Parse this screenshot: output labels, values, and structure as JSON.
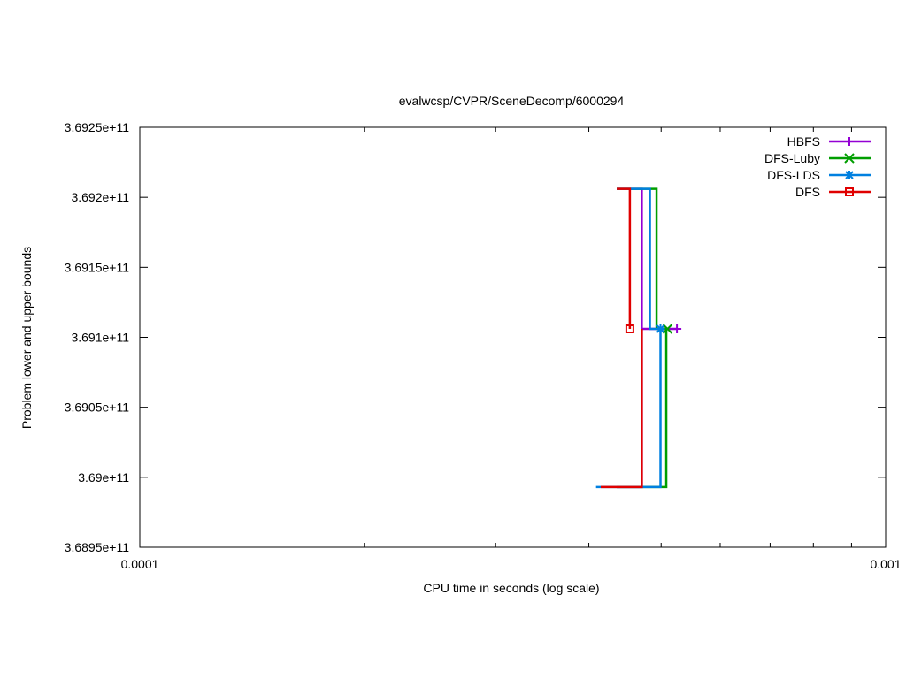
{
  "chart_data": {
    "type": "line",
    "title": "evalwcsp/CVPR/SceneDecomp/6000294",
    "xlabel": "CPU time in seconds (log scale)",
    "ylabel": "Problem lower and upper bounds",
    "xscale": "log",
    "xlim": [
      0.0001,
      0.001
    ],
    "ylim": [
      368950000000,
      369250000000
    ],
    "x_ticks": [
      {
        "value": 0.0001,
        "label": "0.0001"
      },
      {
        "value": 0.001,
        "label": "0.001"
      }
    ],
    "y_ticks": [
      {
        "value": 368950000000,
        "label": "3.6895e+11"
      },
      {
        "value": 369000000000,
        "label": "3.69e+11"
      },
      {
        "value": 369050000000,
        "label": "3.6905e+11"
      },
      {
        "value": 369100000000,
        "label": "3.691e+11"
      },
      {
        "value": 369150000000,
        "label": "3.6915e+11"
      },
      {
        "value": 369200000000,
        "label": "3.692e+11"
      },
      {
        "value": 369250000000,
        "label": "3.6925e+11"
      }
    ],
    "grid": false,
    "legend": "top-right",
    "series": [
      {
        "name": "HBFS",
        "color": "#9400d3",
        "marker": "plus",
        "upper": [
          [
            0.000436,
            369206000000
          ],
          [
            0.000471,
            369206000000
          ]
        ],
        "lower": [
          [
            0.000436,
            368993000000
          ],
          [
            0.000471,
            368993000000
          ]
        ],
        "final": [
          0.000525,
          369106000000
        ]
      },
      {
        "name": "DFS-Luby",
        "color": "#009e00",
        "marker": "x",
        "upper": [
          [
            0.000436,
            369206000000
          ],
          [
            0.000493,
            369206000000
          ]
        ],
        "lower": [
          [
            0.000436,
            368993000000
          ],
          [
            0.000508,
            368993000000
          ]
        ],
        "final": [
          0.00051,
          369106000000
        ]
      },
      {
        "name": "DFS-LDS",
        "color": "#0080e0",
        "marker": "star",
        "upper": [
          [
            0.000436,
            369206000000
          ],
          [
            0.000483,
            369206000000
          ]
        ],
        "lower": [
          [
            0.000409,
            368993000000
          ],
          [
            0.000499,
            368993000000
          ]
        ],
        "final": [
          0.000499,
          369106000000
        ]
      },
      {
        "name": "DFS",
        "color": "#e00000",
        "marker": "square",
        "upper": [
          [
            0.000436,
            369206000000
          ],
          [
            0.000454,
            369206000000
          ]
        ],
        "lower": [
          [
            0.000415,
            368993000000
          ],
          [
            0.000471,
            368993000000
          ]
        ],
        "final": [
          0.000454,
          369106000000
        ]
      }
    ]
  }
}
